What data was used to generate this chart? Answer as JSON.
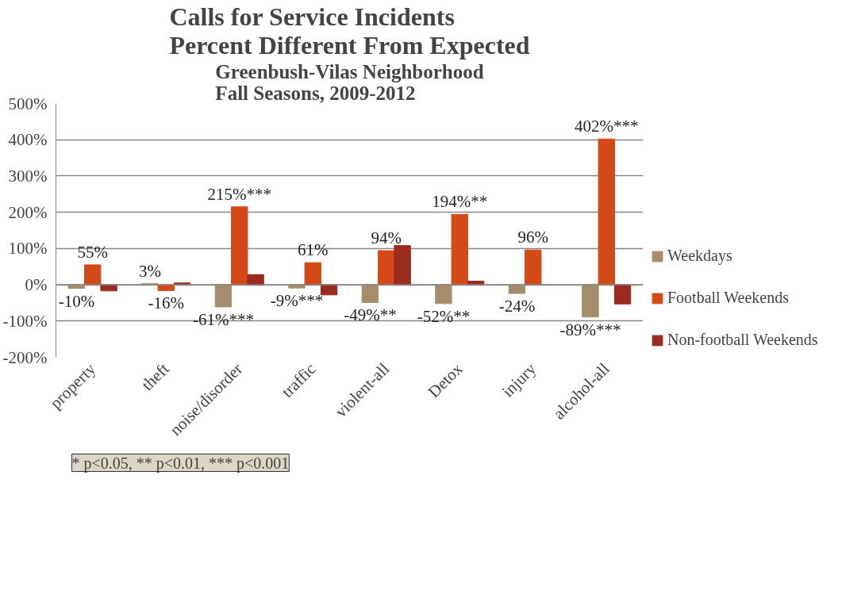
{
  "chart_data": {
    "type": "bar",
    "title": "Calls for Service Incidents\nPercent Different From Expected",
    "subtitle": "Greenbush-Vilas Neighborhood\nFall Seasons, 2009-2012",
    "categories": [
      "property",
      "theft",
      "noise/disorder",
      "traffic",
      "violent-all",
      "Detox",
      "injury",
      "alcohol-all"
    ],
    "series": [
      {
        "name": "Weekdays",
        "color": "#a58d69",
        "values": [
          -10,
          3,
          -61,
          -9,
          -49,
          -52,
          -24,
          -89
        ],
        "value_labels": [
          "-10%",
          "3%",
          "-61%***",
          "-9%***",
          "-49%**",
          "-52%**",
          "-24%",
          "-89%***"
        ]
      },
      {
        "name": "Football Weekends",
        "color": "#d34a18",
        "values": [
          55,
          -16,
          215,
          61,
          94,
          194,
          96,
          402
        ],
        "value_labels": [
          "55%",
          "-16%",
          "215%***",
          "61%",
          "94%",
          "194%**",
          "96%",
          "402%***"
        ]
      },
      {
        "name": "Non-football Weekends",
        "color": "#9b2a1f",
        "values": [
          -17,
          5,
          28,
          -28,
          108,
          10,
          null,
          -53
        ]
      }
    ],
    "ylim": [
      -200,
      500
    ],
    "yticks": [
      {
        "value": -200,
        "label": "-200%"
      },
      {
        "value": -100,
        "label": "-100%"
      },
      {
        "value": 0,
        "label": "0%"
      },
      {
        "value": 100,
        "label": "100%"
      },
      {
        "value": 200,
        "label": "200%"
      },
      {
        "value": 300,
        "label": "300%"
      },
      {
        "value": 400,
        "label": "400%"
      },
      {
        "value": 500,
        "label": "500%"
      }
    ],
    "grid": "y",
    "legend": "right",
    "annotations": [
      "* p<0.05, ** p<0.01, *** p<0.001"
    ]
  }
}
